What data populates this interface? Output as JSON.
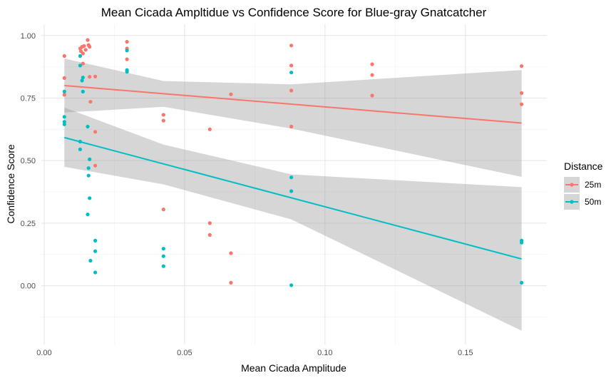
{
  "chart_data": {
    "type": "scatter",
    "title": "Mean Cicada Ampltidue vs Confidence Score for Blue-gray Gnatcatcher",
    "xlabel": "Mean Cicada Amplitude",
    "ylabel": "Confidence Score",
    "xlim": [
      -0.001,
      0.179
    ],
    "ylim": [
      -0.235,
      1.045
    ],
    "x_ticks": [
      0.0,
      0.05,
      0.1,
      0.15
    ],
    "x_tick_labels": [
      "0.00",
      "0.05",
      "0.10",
      "0.15"
    ],
    "y_ticks": [
      0.0,
      0.25,
      0.5,
      0.75,
      1.0
    ],
    "y_tick_labels": [
      "0.00",
      "0.25",
      "0.50",
      "0.75",
      "1.00"
    ],
    "grid": true,
    "legend": {
      "title": "Distance",
      "position": "right",
      "entries": [
        "25m",
        "50m"
      ]
    },
    "series": [
      {
        "name": "25m",
        "color": "#F8766D",
        "points": [
          [
            0.0072,
            0.918
          ],
          [
            0.0072,
            0.83
          ],
          [
            0.0072,
            0.763
          ],
          [
            0.0128,
            0.948
          ],
          [
            0.0131,
            0.937
          ],
          [
            0.0135,
            0.955
          ],
          [
            0.0138,
            0.928
          ],
          [
            0.0142,
            0.958
          ],
          [
            0.0148,
            0.943
          ],
          [
            0.0155,
            0.982
          ],
          [
            0.0158,
            0.962
          ],
          [
            0.0162,
            0.955
          ],
          [
            0.0162,
            0.835
          ],
          [
            0.0138,
            0.888
          ],
          [
            0.0165,
            0.735
          ],
          [
            0.0182,
            0.836
          ],
          [
            0.0182,
            0.615
          ],
          [
            0.0182,
            0.48
          ],
          [
            0.0295,
            0.975
          ],
          [
            0.0295,
            0.948
          ],
          [
            0.0295,
            0.905
          ],
          [
            0.0425,
            0.683
          ],
          [
            0.0425,
            0.66
          ],
          [
            0.0425,
            0.305
          ],
          [
            0.059,
            0.625
          ],
          [
            0.059,
            0.25
          ],
          [
            0.059,
            0.203
          ],
          [
            0.0665,
            0.765
          ],
          [
            0.0665,
            0.13
          ],
          [
            0.0665,
            0.012
          ],
          [
            0.088,
            0.96
          ],
          [
            0.088,
            0.88
          ],
          [
            0.088,
            0.78
          ],
          [
            0.088,
            0.636
          ],
          [
            0.1168,
            0.885
          ],
          [
            0.1168,
            0.842
          ],
          [
            0.1168,
            0.76
          ],
          [
            0.17,
            0.878
          ],
          [
            0.17,
            0.77
          ],
          [
            0.17,
            0.725
          ]
        ],
        "fit": {
          "x": [
            0.0072,
            0.17
          ],
          "y": [
            0.8,
            0.65
          ]
        },
        "ci_lower": [
          [
            0.0072,
            0.692
          ],
          [
            0.0425,
            0.715
          ],
          [
            0.088,
            0.628
          ],
          [
            0.17,
            0.435
          ]
        ],
        "ci_upper": [
          [
            0.0072,
            0.908
          ],
          [
            0.0425,
            0.818
          ],
          [
            0.088,
            0.805
          ],
          [
            0.17,
            0.862
          ]
        ]
      },
      {
        "name": "50m",
        "color": "#00BFC4",
        "points": [
          [
            0.0072,
            0.776
          ],
          [
            0.0072,
            0.675
          ],
          [
            0.0072,
            0.655
          ],
          [
            0.0072,
            0.645
          ],
          [
            0.0128,
            0.918
          ],
          [
            0.0128,
            0.88
          ],
          [
            0.0135,
            0.82
          ],
          [
            0.0138,
            0.832
          ],
          [
            0.0138,
            0.776
          ],
          [
            0.0128,
            0.576
          ],
          [
            0.0128,
            0.545
          ],
          [
            0.0155,
            0.636
          ],
          [
            0.0158,
            0.47
          ],
          [
            0.0158,
            0.44
          ],
          [
            0.0162,
            0.505
          ],
          [
            0.0162,
            0.35
          ],
          [
            0.0155,
            0.285
          ],
          [
            0.0165,
            0.1
          ],
          [
            0.0182,
            0.18
          ],
          [
            0.0182,
            0.138
          ],
          [
            0.0182,
            0.053
          ],
          [
            0.0295,
            0.94
          ],
          [
            0.0295,
            0.862
          ],
          [
            0.0295,
            0.855
          ],
          [
            0.0425,
            0.148
          ],
          [
            0.0425,
            0.118
          ],
          [
            0.0425,
            0.078
          ],
          [
            0.088,
            0.852
          ],
          [
            0.088,
            0.433
          ],
          [
            0.088,
            0.378
          ],
          [
            0.088,
            0.002
          ],
          [
            0.17,
            0.18
          ],
          [
            0.17,
            0.172
          ],
          [
            0.17,
            0.012
          ]
        ],
        "fit": {
          "x": [
            0.0072,
            0.17
          ],
          "y": [
            0.592,
            0.107
          ]
        },
        "ci_lower": [
          [
            0.0072,
            0.475
          ],
          [
            0.0425,
            0.405
          ],
          [
            0.088,
            0.265
          ],
          [
            0.17,
            -0.18
          ]
        ],
        "ci_upper": [
          [
            0.0072,
            0.712
          ],
          [
            0.0425,
            0.564
          ],
          [
            0.088,
            0.445
          ],
          [
            0.17,
            0.394
          ]
        ]
      }
    ]
  }
}
